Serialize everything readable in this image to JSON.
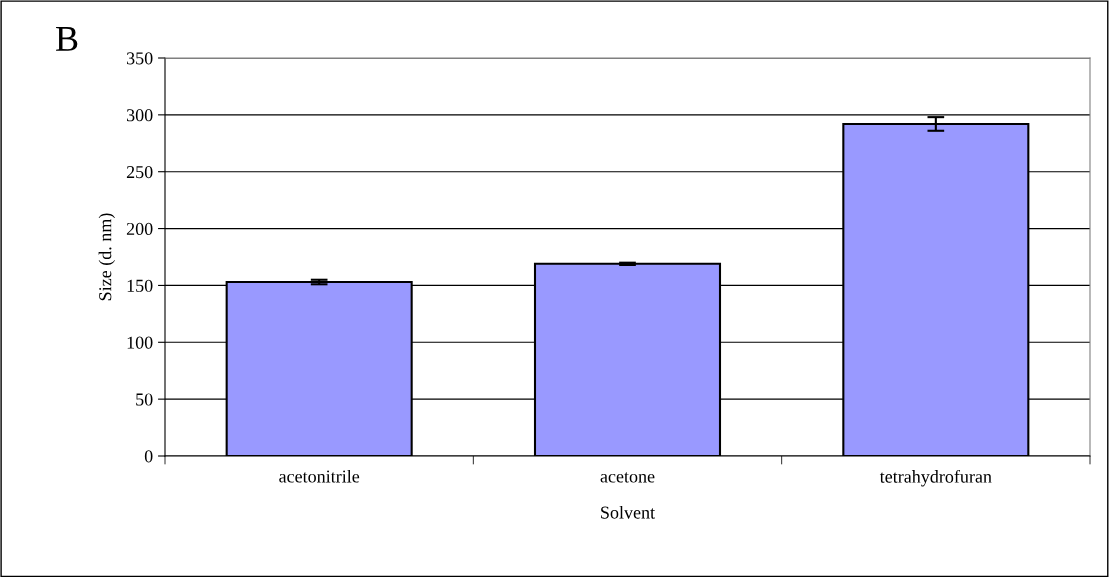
{
  "chart_data": {
    "type": "bar",
    "xlabel": "Solvent",
    "ylabel": "Size (d. nm)",
    "annotations": [
      "B"
    ],
    "categories": [
      "acetonitrile",
      "acetone",
      "tetrahydrofuran"
    ],
    "values": [
      153,
      169,
      292
    ],
    "errors": [
      2,
      1,
      6
    ],
    "color": "#9999ff",
    "ylim": [
      0,
      350
    ],
    "yticks": [
      0,
      50,
      100,
      150,
      200,
      250,
      300,
      350
    ],
    "grid": "y"
  }
}
